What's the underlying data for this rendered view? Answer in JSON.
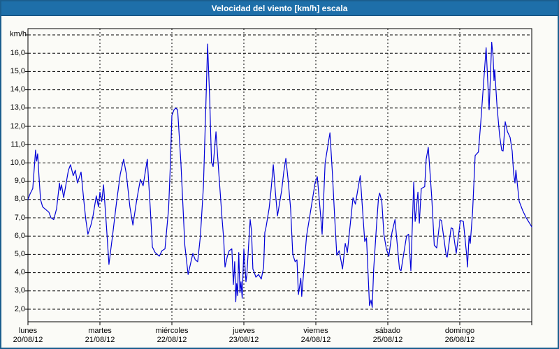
{
  "window": {
    "title": "Velocidad del viento [km/h] escala"
  },
  "colors": {
    "title_bar": "#1e6fa9",
    "outer_border": "#1b5e8e",
    "background": "#fbfbf7",
    "grid": "#000000",
    "axis_text": "#000000",
    "line": "#0000d8"
  },
  "chart_data": {
    "type": "line",
    "title": "Velocidad del viento [km/h] escala",
    "ylabel": "km/h",
    "xlabel": "",
    "legend": null,
    "grid": "dashed",
    "ylim_gridlines": [
      2,
      17
    ],
    "y_tick_step": 1.0,
    "y_ticks": [
      {
        "value": 16,
        "label": "16,0"
      },
      {
        "value": 15,
        "label": "15,0"
      },
      {
        "value": 14,
        "label": "14,0"
      },
      {
        "value": 13,
        "label": "13,0"
      },
      {
        "value": 12,
        "label": "12,0"
      },
      {
        "value": 11,
        "label": "11,0"
      },
      {
        "value": 10,
        "label": "10,0"
      },
      {
        "value": 9,
        "label": "9,0"
      },
      {
        "value": 8,
        "label": "8,0"
      },
      {
        "value": 7,
        "label": "7,0"
      },
      {
        "value": 6,
        "label": "6,0"
      },
      {
        "value": 5,
        "label": "5,0"
      },
      {
        "value": 4,
        "label": "4,0"
      },
      {
        "value": 3,
        "label": "3,0"
      },
      {
        "value": 2,
        "label": "2,0"
      }
    ],
    "y_gridline_values": [
      17,
      16,
      15,
      14,
      13,
      12,
      11,
      10,
      9,
      8,
      7,
      6,
      5,
      4,
      3,
      2
    ],
    "x_days": [
      {
        "name": "lunes",
        "date": "20/08/12"
      },
      {
        "name": "martes",
        "date": "21/08/12"
      },
      {
        "name": "miércoles",
        "date": "22/08/12"
      },
      {
        "name": "jueves",
        "date": "23/08/12"
      },
      {
        "name": "viernes",
        "date": "24/08/12"
      },
      {
        "name": "sábado",
        "date": "25/08/12"
      },
      {
        "name": "domingo",
        "date": "26/08/12"
      }
    ],
    "x_range_hours": [
      0,
      168
    ],
    "series": [
      {
        "name": "velocidad del viento",
        "unit": "km/h",
        "color": "#0000d8",
        "points": [
          [
            0,
            8.0
          ],
          [
            0.7,
            8.3
          ],
          [
            1.6,
            8.6
          ],
          [
            2.1,
            9.7
          ],
          [
            2.55,
            10.7
          ],
          [
            2.9,
            10.1
          ],
          [
            3.25,
            10.5
          ],
          [
            3.7,
            9.2
          ],
          [
            4.2,
            8.0
          ],
          [
            4.9,
            7.6
          ],
          [
            5.6,
            7.5
          ],
          [
            7.0,
            7.3
          ],
          [
            7.7,
            7.0
          ],
          [
            8.6,
            6.9
          ],
          [
            9.55,
            7.5
          ],
          [
            10.5,
            8.9
          ],
          [
            10.8,
            8.5
          ],
          [
            11.2,
            8.8
          ],
          [
            11.9,
            8.1
          ],
          [
            13.5,
            9.6
          ],
          [
            14.2,
            9.9
          ],
          [
            15.1,
            9.3
          ],
          [
            15.8,
            9.6
          ],
          [
            16.5,
            8.9
          ],
          [
            17.7,
            9.5
          ],
          [
            18.6,
            8.0
          ],
          [
            19.3,
            6.9
          ],
          [
            20.0,
            6.1
          ],
          [
            21.0,
            6.6
          ],
          [
            21.7,
            7.1
          ],
          [
            22.8,
            8.2
          ],
          [
            23.5,
            7.6
          ],
          [
            24.0,
            8.4
          ],
          [
            24.6,
            7.9
          ],
          [
            25.2,
            8.8
          ],
          [
            26.2,
            6.5
          ],
          [
            27.0,
            4.45
          ],
          [
            28.2,
            6.0
          ],
          [
            29.5,
            7.8
          ],
          [
            30.8,
            9.4
          ],
          [
            31.9,
            10.2
          ],
          [
            32.8,
            9.4
          ],
          [
            34.0,
            7.6
          ],
          [
            35.0,
            6.6
          ],
          [
            36.3,
            8.0
          ],
          [
            37.5,
            9.1
          ],
          [
            38.4,
            8.75
          ],
          [
            39.8,
            10.2
          ],
          [
            40.8,
            7.5
          ],
          [
            41.5,
            5.4
          ],
          [
            42.4,
            5.1
          ],
          [
            43.8,
            4.9
          ],
          [
            44.7,
            5.2
          ],
          [
            45.7,
            5.3
          ],
          [
            46.9,
            7.5
          ],
          [
            47.5,
            10.0
          ],
          [
            48.0,
            12.6
          ],
          [
            48.7,
            12.9
          ],
          [
            49.3,
            13.0
          ],
          [
            49.9,
            12.9
          ],
          [
            51.0,
            10.0
          ],
          [
            52.3,
            5.5
          ],
          [
            53.4,
            3.9
          ],
          [
            55.0,
            5.05
          ],
          [
            55.8,
            4.7
          ],
          [
            56.6,
            4.6
          ],
          [
            57.5,
            6.0
          ],
          [
            58.5,
            8.7
          ],
          [
            59.3,
            13.0
          ],
          [
            59.9,
            16.5
          ],
          [
            60.6,
            13.5
          ],
          [
            61.2,
            10.05
          ],
          [
            61.75,
            9.8
          ],
          [
            62.7,
            11.7
          ],
          [
            63.5,
            9.8
          ],
          [
            64.7,
            7.0
          ],
          [
            65.3,
            5.8
          ],
          [
            65.7,
            4.3
          ],
          [
            66.5,
            4.9
          ],
          [
            67.1,
            5.2
          ],
          [
            68.0,
            5.3
          ],
          [
            68.5,
            3.35
          ],
          [
            68.95,
            4.6
          ],
          [
            69.3,
            2.4
          ],
          [
            69.6,
            3.4
          ],
          [
            69.9,
            2.75
          ],
          [
            70.3,
            5.1
          ],
          [
            70.7,
            2.9
          ],
          [
            71.05,
            3.5
          ],
          [
            71.45,
            2.6
          ],
          [
            72.0,
            5.3
          ],
          [
            72.7,
            3.5
          ],
          [
            73.0,
            3.9
          ],
          [
            74.1,
            6.9
          ],
          [
            74.55,
            6.3
          ],
          [
            75.0,
            4.2
          ],
          [
            75.5,
            4.0
          ],
          [
            76.0,
            3.75
          ],
          [
            76.9,
            3.9
          ],
          [
            77.8,
            3.65
          ],
          [
            78.6,
            4.3
          ],
          [
            79.0,
            6.2
          ],
          [
            79.4,
            6.5
          ],
          [
            80.4,
            7.5
          ],
          [
            81.0,
            8.4
          ],
          [
            81.8,
            9.9
          ],
          [
            82.5,
            8.4
          ],
          [
            83.2,
            7.1
          ],
          [
            84.6,
            8.5
          ],
          [
            85.3,
            9.5
          ],
          [
            86.0,
            10.25
          ],
          [
            86.8,
            9.0
          ],
          [
            87.6,
            7.5
          ],
          [
            88.3,
            5.0
          ],
          [
            89.1,
            4.6
          ],
          [
            89.7,
            4.7
          ],
          [
            90.2,
            2.8
          ],
          [
            91.0,
            3.7
          ],
          [
            91.3,
            2.7
          ],
          [
            92.9,
            6.0
          ],
          [
            94.1,
            7.2
          ],
          [
            95.75,
            8.9
          ],
          [
            96.5,
            9.25
          ],
          [
            97.6,
            7.1
          ],
          [
            98.1,
            6.1
          ],
          [
            99.1,
            10.0
          ],
          [
            100.7,
            11.65
          ],
          [
            101.5,
            9.5
          ],
          [
            102.3,
            7.0
          ],
          [
            103.0,
            4.95
          ],
          [
            103.8,
            5.2
          ],
          [
            104.9,
            4.2
          ],
          [
            105.8,
            5.6
          ],
          [
            106.5,
            5.1
          ],
          [
            108.4,
            8.1
          ],
          [
            109.2,
            7.75
          ],
          [
            110.8,
            9.3
          ],
          [
            112.3,
            5.7
          ],
          [
            112.9,
            5.9
          ],
          [
            113.9,
            2.2
          ],
          [
            114.4,
            2.5
          ],
          [
            114.8,
            2.1
          ],
          [
            115.3,
            4.2
          ],
          [
            116.2,
            6.5
          ],
          [
            116.9,
            8.1
          ],
          [
            117.3,
            8.35
          ],
          [
            118.0,
            7.9
          ],
          [
            118.7,
            6.1
          ],
          [
            119.5,
            5.3
          ],
          [
            120.35,
            4.9
          ],
          [
            121.4,
            6.2
          ],
          [
            122.4,
            6.9
          ],
          [
            123.9,
            4.2
          ],
          [
            124.4,
            4.1
          ],
          [
            126.25,
            6.0
          ],
          [
            126.95,
            6.1
          ],
          [
            127.7,
            4.1
          ],
          [
            128.65,
            8.95
          ],
          [
            129.1,
            6.8
          ],
          [
            130.05,
            8.4
          ],
          [
            130.5,
            6.7
          ],
          [
            131.15,
            8.6
          ],
          [
            132.3,
            8.7
          ],
          [
            132.8,
            10.2
          ],
          [
            133.5,
            10.85
          ],
          [
            134.65,
            8.1
          ],
          [
            135.5,
            5.5
          ],
          [
            136.3,
            5.35
          ],
          [
            137.4,
            6.9
          ],
          [
            137.9,
            6.85
          ],
          [
            139.5,
            4.9
          ],
          [
            139.8,
            4.85
          ],
          [
            141.1,
            6.45
          ],
          [
            141.65,
            6.4
          ],
          [
            142.8,
            5.05
          ],
          [
            144.2,
            6.85
          ],
          [
            145.2,
            6.8
          ],
          [
            146.33,
            4.9
          ],
          [
            146.56,
            4.3
          ],
          [
            147.1,
            6.0
          ],
          [
            147.5,
            5.6
          ],
          [
            148.26,
            7.3
          ],
          [
            149.13,
            10.4
          ],
          [
            150.22,
            10.6
          ],
          [
            150.99,
            12.2
          ],
          [
            151.69,
            13.8
          ],
          [
            152.78,
            16.3
          ],
          [
            153.79,
            12.9
          ],
          [
            154.65,
            16.6
          ],
          [
            155.11,
            15.8
          ],
          [
            155.42,
            14.5
          ],
          [
            155.65,
            15.1
          ],
          [
            156.42,
            13.1
          ],
          [
            157.28,
            11.5
          ],
          [
            157.98,
            10.7
          ],
          [
            158.44,
            10.65
          ],
          [
            159.14,
            12.25
          ],
          [
            159.91,
            11.7
          ],
          [
            160.77,
            11.4
          ],
          [
            161.47,
            10.65
          ],
          [
            161.94,
            9.45
          ],
          [
            162.4,
            8.9
          ],
          [
            162.71,
            9.6
          ],
          [
            163.8,
            7.9
          ],
          [
            164.97,
            7.4
          ],
          [
            166.13,
            7.0
          ],
          [
            167.3,
            6.7
          ],
          [
            168,
            6.5
          ]
        ]
      }
    ]
  }
}
